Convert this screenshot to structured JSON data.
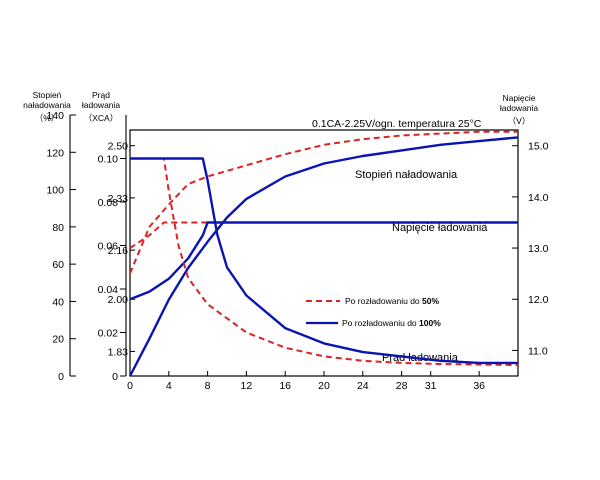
{
  "chart_data": {
    "type": "line",
    "condition": "0.1CA-2.25V/ogn.  temperatura 25°C",
    "x": {
      "ticks": [
        "0",
        "4",
        "8",
        "12",
        "16",
        "20",
        "24",
        "28",
        "31",
        "36"
      ],
      "range": [
        0,
        40
      ]
    },
    "axes": {
      "soc": {
        "title_line1": "Stopień",
        "title_line2": "naładowania",
        "unit": "（%）",
        "ticks": [
          "0",
          "20",
          "40",
          "60",
          "80",
          "100",
          "120",
          "140"
        ],
        "range": [
          0,
          140
        ]
      },
      "current": {
        "title_line1": "Prąd",
        "title_line2": "ładowania",
        "unit": "（XCA）",
        "ticks": [
          "0",
          "0.02",
          "0.04",
          "0.06",
          "0.08",
          "0.10"
        ],
        "range": [
          0,
          0.12
        ]
      },
      "cell_voltage": {
        "ticks": [
          "1.83",
          "2.00",
          "2.16",
          "2.33",
          "2.50"
        ],
        "range": [
          1.75,
          2.6
        ]
      },
      "battery_voltage": {
        "title_line1": "Napięcie",
        "title_line2": "ładowania",
        "unit": "（V）",
        "ticks": [
          "11.0",
          "12.0",
          "13.0",
          "14.0",
          "15.0"
        ],
        "range": [
          10.5,
          15.6
        ]
      }
    },
    "curve_labels": {
      "soc": "Stopień naładowania",
      "voltage": "Napięcie ładowania",
      "current": "Prąd ładowania"
    },
    "legend": [
      {
        "prefix": "Po rozładowaniu do ",
        "strong": "50%",
        "style": "dashed",
        "color": "#dd2222"
      },
      {
        "prefix": "Po rozładowaniu do ",
        "strong": "100%",
        "style": "solid",
        "color": "#0a14b4"
      }
    ],
    "series": [
      {
        "name": "Stopień naładowania",
        "discharge": "50%",
        "axis": "soc",
        "points": [
          [
            0,
            55
          ],
          [
            2,
            80
          ],
          [
            4,
            92
          ],
          [
            6,
            103
          ],
          [
            8,
            107
          ],
          [
            12,
            113
          ],
          [
            16,
            119
          ],
          [
            20,
            124
          ],
          [
            24,
            127
          ],
          [
            28,
            129
          ],
          [
            32,
            130
          ],
          [
            36,
            131
          ],
          [
            40,
            131
          ]
        ]
      },
      {
        "name": "Stopień naładowania",
        "discharge": "100%",
        "axis": "soc",
        "points": [
          [
            0,
            0
          ],
          [
            2,
            20
          ],
          [
            4,
            41
          ],
          [
            6,
            58
          ],
          [
            8,
            72
          ],
          [
            10,
            85
          ],
          [
            12,
            95
          ],
          [
            16,
            107
          ],
          [
            20,
            114
          ],
          [
            24,
            118
          ],
          [
            28,
            121
          ],
          [
            32,
            124
          ],
          [
            36,
            126
          ],
          [
            40,
            128
          ]
        ]
      },
      {
        "name": "Napięcie ładowania",
        "discharge": "50%",
        "axis": "battery_voltage",
        "points": [
          [
            0,
            13.0
          ],
          [
            2,
            13.25
          ],
          [
            3.5,
            13.5
          ],
          [
            4,
            13.5
          ],
          [
            40,
            13.5
          ]
        ]
      },
      {
        "name": "Napięcie ładowania",
        "discharge": "100%",
        "axis": "battery_voltage",
        "points": [
          [
            0,
            12.0
          ],
          [
            2,
            12.15
          ],
          [
            4,
            12.4
          ],
          [
            6,
            12.8
          ],
          [
            7.5,
            13.25
          ],
          [
            8,
            13.5
          ],
          [
            40,
            13.5
          ]
        ]
      },
      {
        "name": "Prąd ładowania",
        "discharge": "50%",
        "axis": "current",
        "points": [
          [
            0,
            0.1
          ],
          [
            3.5,
            0.1
          ],
          [
            4,
            0.085
          ],
          [
            5,
            0.06
          ],
          [
            6,
            0.045
          ],
          [
            8,
            0.033
          ],
          [
            12,
            0.02
          ],
          [
            16,
            0.013
          ],
          [
            20,
            0.009
          ],
          [
            24,
            0.007
          ],
          [
            28,
            0.006
          ],
          [
            32,
            0.0055
          ],
          [
            40,
            0.005
          ]
        ]
      },
      {
        "name": "Prąd ładowania",
        "discharge": "100%",
        "axis": "current",
        "points": [
          [
            0,
            0.1
          ],
          [
            7.5,
            0.1
          ],
          [
            8,
            0.09
          ],
          [
            9,
            0.065
          ],
          [
            10,
            0.05
          ],
          [
            12,
            0.037
          ],
          [
            16,
            0.022
          ],
          [
            20,
            0.015
          ],
          [
            24,
            0.011
          ],
          [
            28,
            0.009
          ],
          [
            32,
            0.007
          ],
          [
            36,
            0.006
          ],
          [
            40,
            0.006
          ]
        ]
      }
    ]
  }
}
